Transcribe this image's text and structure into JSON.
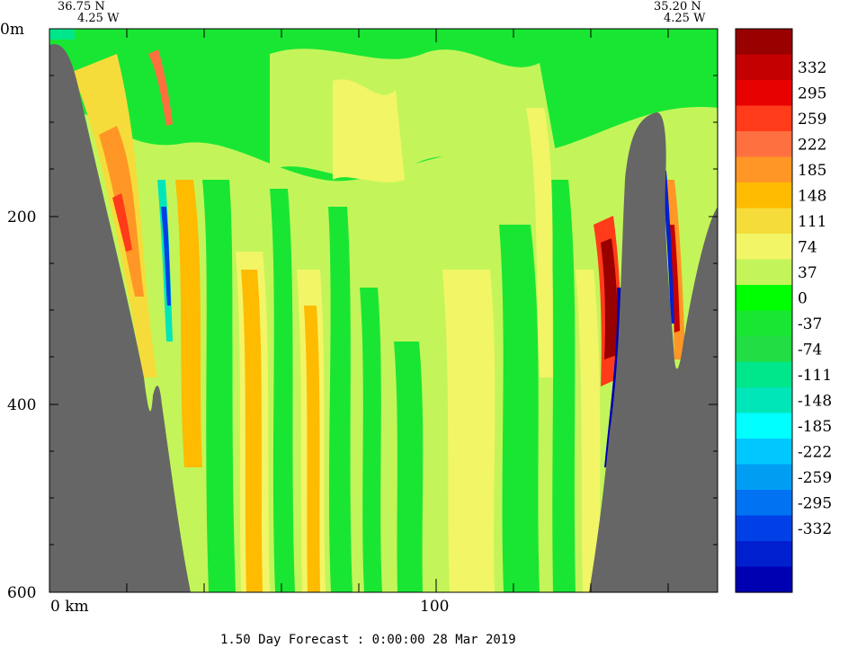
{
  "chart_data": {
    "type": "heatmap",
    "title": "",
    "top_left_label": {
      "lat": "36.75 N",
      "lon": "4.25 W"
    },
    "top_right_label": {
      "lat": "35.20 N",
      "lon": "4.25 W"
    },
    "y_axis": {
      "unit": "m",
      "range": [
        0,
        600
      ],
      "ticks": [
        {
          "value": 0,
          "label": "0m"
        },
        {
          "value": 200,
          "label": "200"
        },
        {
          "value": 400,
          "label": "400"
        },
        {
          "value": 600,
          "label": "600"
        }
      ]
    },
    "x_axis": {
      "range": [
        0,
        173
      ],
      "ticks": [
        {
          "value": 0,
          "label": "0 km"
        },
        {
          "value": 100,
          "label": "100"
        }
      ]
    },
    "colorbar": {
      "labels": [
        "332",
        "295",
        "259",
        "222",
        "185",
        "148",
        "111",
        "74",
        "37",
        "0",
        "-37",
        "-74",
        "-111",
        "-148",
        "-185",
        "-222",
        "-259",
        "-295",
        "-332"
      ],
      "colors": [
        "#990000",
        "#c40000",
        "#e60000",
        "#ff3b1a",
        "#ff7040",
        "#ff9626",
        "#ffbb00",
        "#f5dc3a",
        "#f2f566",
        "#c3f55a",
        "#00ff00",
        "#19e633",
        "#22dd44",
        "#00e68a",
        "#00e6b8",
        "#00ffff",
        "#00c8ff",
        "#009ef2",
        "#0072f2",
        "#0040e6",
        "#0020d0",
        "#0000b3"
      ]
    },
    "footer": "1.50 Day Forecast :  0:00:00  28 Mar 2019",
    "terrain_color": "#666666"
  }
}
